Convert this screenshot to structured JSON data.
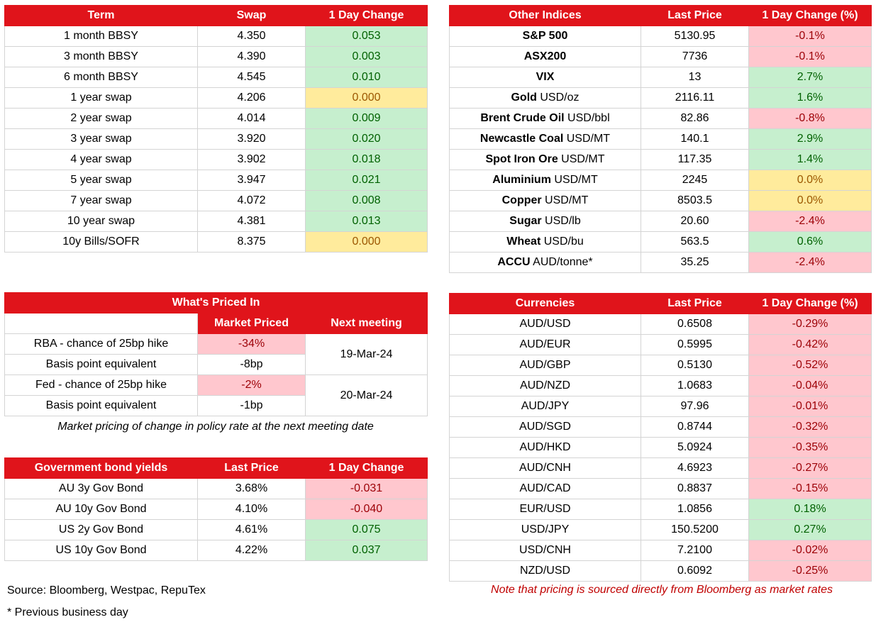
{
  "swap_table": {
    "headers": [
      "Term",
      "Swap",
      "1 Day Change"
    ],
    "rows": [
      {
        "term": "1 month BBSY",
        "swap": "4.350",
        "change": "0.053",
        "status": "pos"
      },
      {
        "term": "3 month BBSY",
        "swap": "4.390",
        "change": "0.003",
        "status": "pos"
      },
      {
        "term": "6 month BBSY",
        "swap": "4.545",
        "change": "0.010",
        "status": "pos"
      },
      {
        "term": "1 year swap",
        "swap": "4.206",
        "change": "0.000",
        "status": "zero"
      },
      {
        "term": "2 year swap",
        "swap": "4.014",
        "change": "0.009",
        "status": "pos"
      },
      {
        "term": "3 year swap",
        "swap": "3.920",
        "change": "0.020",
        "status": "pos"
      },
      {
        "term": "4 year swap",
        "swap": "3.902",
        "change": "0.018",
        "status": "pos"
      },
      {
        "term": "5 year swap",
        "swap": "3.947",
        "change": "0.021",
        "status": "pos"
      },
      {
        "term": "7 year swap",
        "swap": "4.072",
        "change": "0.008",
        "status": "pos"
      },
      {
        "term": "10 year swap",
        "swap": "4.381",
        "change": "0.013",
        "status": "pos"
      },
      {
        "term": "10y Bills/SOFR",
        "swap": "8.375",
        "change": "0.000",
        "status": "zero"
      }
    ]
  },
  "other_indices": {
    "headers": [
      "Other Indices",
      "Last Price",
      "1 Day Change (%)"
    ],
    "rows": [
      {
        "name": "S&P 500",
        "unit": "",
        "price": "5130.95",
        "change": "-0.1%",
        "status": "neg"
      },
      {
        "name": "ASX200",
        "unit": "",
        "price": "7736",
        "change": "-0.1%",
        "status": "neg"
      },
      {
        "name": "VIX",
        "unit": "",
        "price": "13",
        "change": "2.7%",
        "status": "pos"
      },
      {
        "name": "Gold",
        "unit": " USD/oz",
        "price": "2116.11",
        "change": "1.6%",
        "status": "pos"
      },
      {
        "name": "Brent Crude Oil",
        "unit": " USD/bbl",
        "price": "82.86",
        "change": "-0.8%",
        "status": "neg"
      },
      {
        "name": "Newcastle Coal",
        "unit": " USD/MT",
        "price": "140.1",
        "change": "2.9%",
        "status": "pos"
      },
      {
        "name": "Spot Iron Ore",
        "unit": " USD/MT",
        "price": "117.35",
        "change": "1.4%",
        "status": "pos"
      },
      {
        "name": "Aluminium",
        "unit": " USD/MT",
        "price": "2245",
        "change": "0.0%",
        "status": "zero"
      },
      {
        "name": "Copper",
        "unit": " USD/MT",
        "price": "8503.5",
        "change": "0.0%",
        "status": "zero"
      },
      {
        "name": "Sugar",
        "unit": " USD/lb",
        "price": "20.60",
        "change": "-2.4%",
        "status": "neg"
      },
      {
        "name": "Wheat",
        "unit": " USD/bu",
        "price": "563.5",
        "change": "0.6%",
        "status": "pos"
      },
      {
        "name": "ACCU",
        "unit": " AUD/tonne*",
        "price": "35.25",
        "change": "-2.4%",
        "status": "neg"
      }
    ]
  },
  "priced_in": {
    "title": "What's Priced In",
    "col_market": "Market Priced",
    "col_next": "Next meeting",
    "rows": [
      {
        "label": "RBA - chance of 25bp hike",
        "value": "-34%",
        "status": "neg"
      },
      {
        "label": "Basis point equivalent",
        "value": "-8bp",
        "status": ""
      },
      {
        "label": "Fed - chance of 25bp hike",
        "value": "-2%",
        "status": "neg"
      },
      {
        "label": "Basis point equivalent",
        "value": "-1bp",
        "status": ""
      }
    ],
    "meetings": [
      "19-Mar-24",
      "20-Mar-24"
    ],
    "caption": "Market pricing of change in policy rate at the next meeting date"
  },
  "bond_yields": {
    "headers": [
      "Government bond yields",
      "Last Price",
      "1 Day Change"
    ],
    "rows": [
      {
        "name": "AU 3y Gov Bond",
        "price": "3.68%",
        "change": "-0.031",
        "status": "neg"
      },
      {
        "name": "AU 10y Gov Bond",
        "price": "4.10%",
        "change": "-0.040",
        "status": "neg"
      },
      {
        "name": "US 2y Gov Bond",
        "price": "4.61%",
        "change": "0.075",
        "status": "pos"
      },
      {
        "name": "US 10y Gov Bond",
        "price": "4.22%",
        "change": "0.037",
        "status": "pos"
      }
    ]
  },
  "currencies": {
    "headers": [
      "Currencies",
      "Last Price",
      "1 Day Change (%)"
    ],
    "rows": [
      {
        "pair": "AUD/USD",
        "price": "0.6508",
        "change": "-0.29%",
        "status": "neg"
      },
      {
        "pair": "AUD/EUR",
        "price": "0.5995",
        "change": "-0.42%",
        "status": "neg"
      },
      {
        "pair": "AUD/GBP",
        "price": "0.5130",
        "change": "-0.52%",
        "status": "neg"
      },
      {
        "pair": "AUD/NZD",
        "price": "1.0683",
        "change": "-0.04%",
        "status": "neg"
      },
      {
        "pair": "AUD/JPY",
        "price": "97.96",
        "change": "-0.01%",
        "status": "neg"
      },
      {
        "pair": "AUD/SGD",
        "price": "0.8744",
        "change": "-0.32%",
        "status": "neg"
      },
      {
        "pair": "AUD/HKD",
        "price": "5.0924",
        "change": "-0.35%",
        "status": "neg"
      },
      {
        "pair": "AUD/CNH",
        "price": "4.6923",
        "change": "-0.27%",
        "status": "neg"
      },
      {
        "pair": "AUD/CAD",
        "price": "0.8837",
        "change": "-0.15%",
        "status": "neg"
      },
      {
        "pair": "EUR/USD",
        "price": "1.0856",
        "change": "0.18%",
        "status": "pos"
      },
      {
        "pair": "USD/JPY",
        "price": "150.5200",
        "change": "0.27%",
        "status": "pos"
      },
      {
        "pair": "USD/CNH",
        "price": "7.2100",
        "change": "-0.02%",
        "status": "neg"
      },
      {
        "pair": "NZD/USD",
        "price": "0.6092",
        "change": "-0.25%",
        "status": "neg"
      }
    ]
  },
  "footer": {
    "source": "Source: Bloomberg, Westpac, RepuTex",
    "previous_day": "* Previous business day",
    "bloomberg_note": "Note that pricing is sourced directly from Bloomberg as market rates"
  },
  "colors": {
    "header_red": "#e0141b",
    "positive_fill": "#c6efce",
    "negative_fill": "#ffc7ce",
    "zero_fill": "#ffeb9c"
  }
}
